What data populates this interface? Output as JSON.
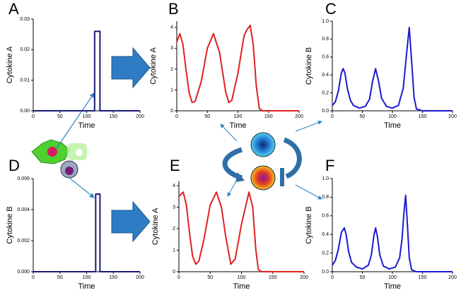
{
  "chart_data": [
    {
      "type": "line",
      "label": "A",
      "xlabel": "Time",
      "ylabel": "Cytokine A",
      "x": [
        0,
        115,
        115,
        125,
        125,
        200
      ],
      "series": [
        {
          "color": "#1a1a7a",
          "values": [
            0,
            0,
            0.026,
            0.026,
            0,
            0
          ]
        }
      ],
      "xlim": [
        0,
        200
      ],
      "xticks": [
        0,
        50,
        100,
        150,
        200
      ],
      "ylim": [
        0,
        0.03
      ],
      "yticks": [
        {
          "value": 0,
          "label": "0.00"
        },
        0.01,
        0.02,
        0.03
      ]
    },
    {
      "type": "line",
      "label": "B",
      "xlabel": "Time",
      "ylabel": "Cytokine A",
      "x": [
        0,
        5,
        10,
        15,
        20,
        25,
        30,
        40,
        50,
        60,
        70,
        80,
        85,
        90,
        100,
        110,
        115,
        120,
        125,
        130,
        135,
        140,
        150,
        200
      ],
      "series": [
        {
          "color": "#e02020",
          "values": [
            3.3,
            3.7,
            3.2,
            2.0,
            0.9,
            0.4,
            0.45,
            1.4,
            3.0,
            3.7,
            2.8,
            0.9,
            0.4,
            0.5,
            1.8,
            3.6,
            3.9,
            4.1,
            3.2,
            1.2,
            0.1,
            0,
            0,
            0
          ]
        }
      ],
      "xlim": [
        0,
        200
      ],
      "xticks": [
        0,
        50,
        100,
        150,
        200
      ],
      "ylim": [
        0,
        4.3
      ],
      "yticks": [
        0,
        1,
        2,
        3,
        4
      ]
    },
    {
      "type": "line",
      "label": "C",
      "xlabel": "Time",
      "ylabel": "Cytokine B",
      "x": [
        0,
        5,
        10,
        15,
        18,
        21,
        25,
        30,
        35,
        45,
        55,
        62,
        67,
        72,
        77,
        82,
        90,
        100,
        110,
        118,
        123,
        128,
        132,
        136,
        140,
        150,
        200
      ],
      "series": [
        {
          "color": "#1a1ad0",
          "values": [
            0.06,
            0.1,
            0.22,
            0.42,
            0.47,
            0.42,
            0.25,
            0.12,
            0.06,
            0.03,
            0.05,
            0.13,
            0.33,
            0.47,
            0.33,
            0.14,
            0.05,
            0.03,
            0.06,
            0.25,
            0.6,
            0.93,
            0.55,
            0.15,
            0.02,
            0,
            0
          ]
        }
      ],
      "xlim": [
        0,
        200
      ],
      "xticks": [
        0,
        50,
        100,
        150,
        200
      ],
      "ylim": [
        0,
        1
      ],
      "yticks": [
        {
          "value": 0,
          "label": "0.0"
        },
        0.2,
        0.4,
        0.6,
        0.8,
        {
          "value": 1,
          "label": "1.0"
        }
      ]
    },
    {
      "type": "line",
      "label": "D",
      "xlabel": "Time",
      "ylabel": "Cytokine B",
      "x": [
        0,
        117,
        117,
        125,
        125,
        200
      ],
      "series": [
        {
          "color": "#1a1a7a",
          "values": [
            0,
            0,
            0.005,
            0.005,
            0,
            0
          ]
        }
      ],
      "xlim": [
        0,
        200
      ],
      "xticks": [
        0,
        50,
        100,
        150,
        200
      ],
      "ylim": [
        0,
        0.006
      ],
      "yticks": [
        {
          "value": 0,
          "label": "0.000"
        },
        0.002,
        0.004,
        0.006
      ]
    },
    {
      "type": "line",
      "label": "E",
      "xlabel": "Time",
      "ylabel": "Cytokine A",
      "x": [
        0,
        7,
        12,
        17,
        22,
        27,
        32,
        40,
        50,
        60,
        68,
        75,
        83,
        90,
        100,
        112,
        118,
        123,
        127,
        132,
        140,
        200
      ],
      "series": [
        {
          "color": "#e02020",
          "values": [
            3.5,
            3.7,
            3.1,
            1.8,
            0.7,
            0.35,
            0.5,
            1.5,
            3.1,
            3.7,
            3.0,
            1.6,
            0.35,
            0.6,
            2.2,
            3.7,
            3.0,
            1.0,
            0.1,
            0,
            0,
            0
          ]
        }
      ],
      "xlim": [
        0,
        200
      ],
      "xticks": [
        0,
        50,
        100,
        150,
        200
      ],
      "ylim": [
        0,
        4.2
      ],
      "yticks": [
        0,
        1,
        2,
        3,
        4
      ]
    },
    {
      "type": "line",
      "label": "F",
      "xlabel": "Time",
      "ylabel": "Cytokine B",
      "x": [
        0,
        5,
        10,
        15,
        20,
        23,
        27,
        32,
        40,
        50,
        60,
        65,
        69,
        72,
        75,
        79,
        85,
        95,
        105,
        112,
        116,
        119,
        122,
        125,
        128,
        132,
        140,
        200
      ],
      "series": [
        {
          "color": "#1a1ad0",
          "values": [
            0.07,
            0.12,
            0.24,
            0.42,
            0.47,
            0.4,
            0.22,
            0.1,
            0.05,
            0.03,
            0.07,
            0.18,
            0.38,
            0.47,
            0.38,
            0.18,
            0.06,
            0.03,
            0.05,
            0.15,
            0.35,
            0.62,
            0.82,
            0.5,
            0.15,
            0.02,
            0,
            0
          ]
        }
      ],
      "xlim": [
        0,
        200
      ],
      "xticks": [
        0,
        50,
        100,
        150,
        200
      ],
      "ylim": [
        0,
        1
      ],
      "yticks": [
        {
          "value": 0,
          "label": "0.0"
        },
        0.2,
        0.4,
        0.6,
        0.8,
        {
          "value": 1,
          "label": "1.0"
        }
      ]
    }
  ]
}
